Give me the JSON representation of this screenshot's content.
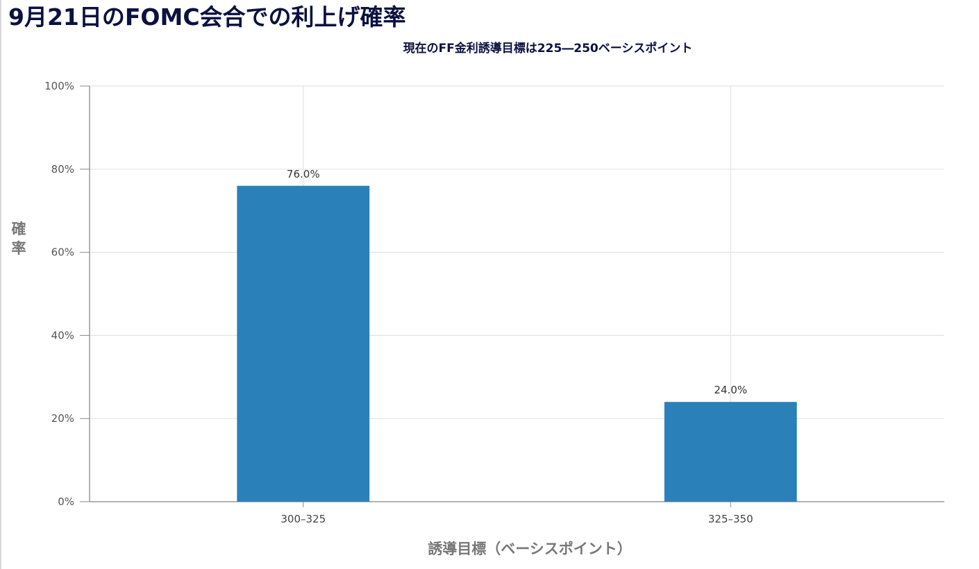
{
  "chart_data": {
    "type": "bar",
    "title": "9月21日のFOMC会合での利上げ確率",
    "subtitle": "現在のFF金利誘導目標は225―250ベーシスポイント",
    "xlabel": "誘導目標（ベーシスポイント）",
    "ylabel": "確率",
    "categories": [
      "300–325",
      "325–350"
    ],
    "values": [
      76.0,
      24.0
    ],
    "data_labels": [
      "76.0%",
      "24.0%"
    ],
    "ylim": [
      0,
      100
    ],
    "y_ticks": [
      0,
      20,
      40,
      60,
      80,
      100
    ],
    "y_tick_labels": [
      "0%",
      "20%",
      "40%",
      "60%",
      "80%",
      "100%"
    ],
    "grid": true,
    "legend": "none",
    "colors": {
      "bar": "#2a80b9",
      "grid": "#e3e3e3",
      "axis": "#9a9a9a"
    }
  }
}
